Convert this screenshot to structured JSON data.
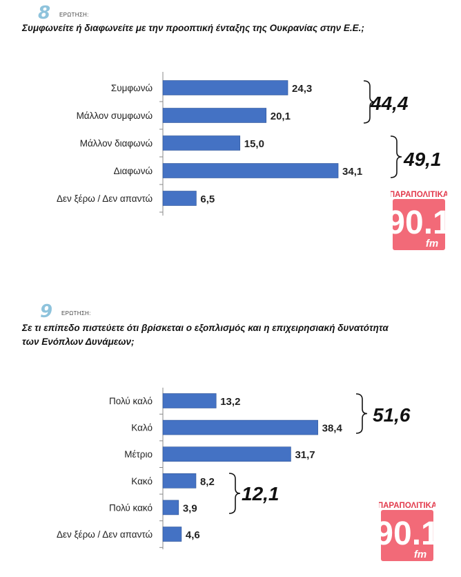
{
  "colors": {
    "bar": "#4472c4",
    "bar_edge": "#2f5597",
    "axis": "#888888",
    "qnum": "#8ec3dc",
    "logo": "#f26a78"
  },
  "logo": {
    "brand": "ΠΑΡΑΠΟΛΙΤΙΚΑ",
    "number": "90.1",
    "suffix": "fm"
  },
  "questions": [
    {
      "number": "8",
      "label": "ΕΡΩΤΗΣΗ:",
      "text": "Συμφωνείτε ή διαφωνείτε με την προοπτική ένταξης της Ουκρανίας στην Ε.Ε.;"
    },
    {
      "number": "9",
      "label": "ΕΡΩΤΗΣΗ:",
      "text_line1": "Σε τι επίπεδο πιστεύετε ότι βρίσκεται ο εξοπλισμός και η επιχειρησιακή δυνατότητα",
      "text_line2": "των Ενόπλων Δυνάμεων;"
    }
  ],
  "chart_data": [
    {
      "type": "bar",
      "orientation": "horizontal",
      "categories": [
        "Συμφωνώ",
        "Μάλλον συμφωνώ",
        "Μάλλον διαφωνώ",
        "Διαφωνώ",
        "Δεν ξέρω / Δεν απαντώ"
      ],
      "values": [
        24.3,
        20.1,
        15.0,
        34.1,
        6.5
      ],
      "labels": [
        "24,3",
        "20,1",
        "15,0",
        "34,1",
        "6,5"
      ],
      "groups": [
        {
          "from": 0,
          "to": 1,
          "total": "44,4"
        },
        {
          "from": 2,
          "to": 3,
          "total": "49,1"
        }
      ]
    },
    {
      "type": "bar",
      "orientation": "horizontal",
      "categories": [
        "Πολύ καλό",
        "Καλό",
        "Μέτριο",
        "Κακό",
        "Πολύ κακό",
        "Δεν ξέρω / Δεν απαντώ"
      ],
      "values": [
        13.2,
        38.4,
        31.7,
        8.2,
        3.9,
        4.6
      ],
      "labels": [
        "13,2",
        "38,4",
        "31,7",
        "8,2",
        "3,9",
        "4,6"
      ],
      "groups": [
        {
          "from": 0,
          "to": 1,
          "total": "51,6"
        },
        {
          "from": 3,
          "to": 4,
          "total": "12,1"
        }
      ]
    }
  ]
}
